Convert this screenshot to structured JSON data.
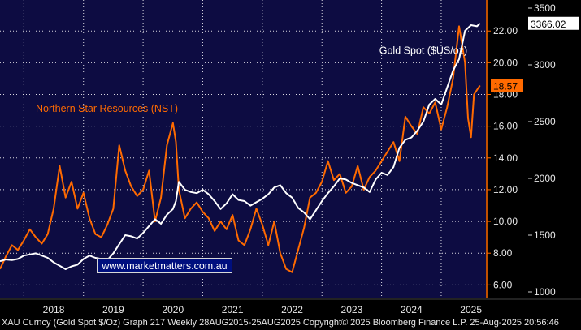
{
  "footer_text": "XAU Curncy (Gold Spot  $/Oz) Graph 217  Weekly 28AUG2015-25AUG2025 Copyright© 2025 Bloomberg Finance L.P. 25-Aug-2025 20:56:46",
  "watermark": "www.marketmatters.com.au",
  "colors": {
    "background": "#0d0c42",
    "gold": "#ffffff",
    "nst": "#ff6a00",
    "grid": "#ffffff",
    "axis_orange": "#ff6a00"
  },
  "chart_data": {
    "type": "line",
    "title": "",
    "xlabel": "",
    "ylabel": "",
    "grid": true,
    "legend": "inline labels",
    "x_range": [
      2017.6,
      2025.75
    ],
    "x_ticks": [
      "2018",
      "2019",
      "2020",
      "2021",
      "2022",
      "2023",
      "2024",
      "2025"
    ],
    "y_left": {
      "range": [
        5.2,
        23.8
      ],
      "ticks": [
        "6.00",
        "8.00",
        "10.00",
        "12.00",
        "14.00",
        "16.00",
        "18.00",
        "20.00",
        "22.00"
      ]
    },
    "y_right": {
      "range": [
        950,
        3550
      ],
      "ticks": [
        "1000",
        "1500",
        "2000",
        "2500",
        "3000",
        "3500"
      ]
    },
    "series": [
      {
        "name": "Gold Spot ($US/oz)",
        "axis": "right",
        "last_value": "3366.02",
        "x": [
          2017.6,
          2017.7,
          2017.8,
          2017.9,
          2018.0,
          2018.1,
          2018.2,
          2018.3,
          2018.4,
          2018.5,
          2018.6,
          2018.7,
          2018.8,
          2018.9,
          2019.0,
          2019.1,
          2019.2,
          2019.3,
          2019.4,
          2019.5,
          2019.6,
          2019.7,
          2019.8,
          2019.9,
          2020.0,
          2020.1,
          2020.2,
          2020.3,
          2020.4,
          2020.5,
          2020.55,
          2020.6,
          2020.7,
          2020.8,
          2020.9,
          2021.0,
          2021.1,
          2021.2,
          2021.3,
          2021.4,
          2021.5,
          2021.6,
          2021.7,
          2021.8,
          2021.9,
          2022.0,
          2022.1,
          2022.2,
          2022.3,
          2022.4,
          2022.5,
          2022.6,
          2022.7,
          2022.8,
          2022.9,
          2023.0,
          2023.1,
          2023.2,
          2023.3,
          2023.4,
          2023.5,
          2023.6,
          2023.7,
          2023.8,
          2023.9,
          2024.0,
          2024.1,
          2024.2,
          2024.3,
          2024.4,
          2024.5,
          2024.6,
          2024.7,
          2024.8,
          2024.9,
          2025.0,
          2025.1,
          2025.2,
          2025.3,
          2025.4,
          2025.5,
          2025.6,
          2025.65
        ],
        "values": [
          1270,
          1285,
          1280,
          1290,
          1320,
          1330,
          1340,
          1320,
          1300,
          1260,
          1230,
          1200,
          1225,
          1240,
          1290,
          1320,
          1300,
          1290,
          1280,
          1340,
          1420,
          1500,
          1490,
          1470,
          1520,
          1580,
          1640,
          1600,
          1680,
          1730,
          1800,
          1970,
          1900,
          1880,
          1870,
          1900,
          1860,
          1800,
          1730,
          1780,
          1860,
          1810,
          1800,
          1760,
          1790,
          1820,
          1860,
          1920,
          1940,
          1870,
          1830,
          1740,
          1700,
          1640,
          1720,
          1800,
          1870,
          1930,
          2000,
          1990,
          1960,
          1940,
          1920,
          1880,
          1990,
          2050,
          2030,
          2100,
          2270,
          2340,
          2360,
          2420,
          2500,
          2650,
          2700,
          2650,
          2800,
          2950,
          3050,
          3300,
          3350,
          3340,
          3366.02
        ]
      },
      {
        "name": "Northern Star Resources (NST)",
        "axis": "left",
        "last_value": "18.57",
        "x": [
          2017.6,
          2017.7,
          2017.8,
          2017.9,
          2018.0,
          2018.1,
          2018.2,
          2018.3,
          2018.4,
          2018.5,
          2018.6,
          2018.7,
          2018.8,
          2018.9,
          2019.0,
          2019.1,
          2019.2,
          2019.3,
          2019.4,
          2019.5,
          2019.6,
          2019.7,
          2019.8,
          2019.9,
          2020.0,
          2020.1,
          2020.2,
          2020.3,
          2020.4,
          2020.5,
          2020.55,
          2020.6,
          2020.7,
          2020.8,
          2020.9,
          2021.0,
          2021.1,
          2021.2,
          2021.3,
          2021.4,
          2021.5,
          2021.6,
          2021.7,
          2021.8,
          2021.9,
          2022.0,
          2022.1,
          2022.2,
          2022.3,
          2022.4,
          2022.5,
          2022.6,
          2022.7,
          2022.8,
          2022.9,
          2023.0,
          2023.1,
          2023.2,
          2023.3,
          2023.4,
          2023.5,
          2023.6,
          2023.7,
          2023.8,
          2023.9,
          2024.0,
          2024.1,
          2024.2,
          2024.3,
          2024.4,
          2024.5,
          2024.6,
          2024.7,
          2024.8,
          2024.9,
          2025.0,
          2025.1,
          2025.2,
          2025.3,
          2025.4,
          2025.45,
          2025.5,
          2025.55,
          2025.65
        ],
        "values": [
          7.0,
          7.8,
          8.5,
          8.2,
          8.8,
          9.5,
          9.0,
          8.6,
          9.2,
          10.8,
          13.5,
          11.5,
          12.5,
          10.8,
          11.8,
          10.2,
          9.2,
          9.0,
          9.8,
          10.8,
          14.8,
          13.2,
          12.2,
          11.6,
          12.0,
          13.2,
          10.0,
          11.5,
          14.8,
          16.2,
          15.0,
          12.0,
          10.2,
          10.8,
          11.2,
          10.6,
          10.2,
          9.4,
          10.0,
          9.5,
          10.4,
          8.8,
          8.5,
          9.5,
          10.8,
          9.8,
          8.5,
          10.0,
          8.0,
          7.0,
          6.8,
          8.2,
          9.6,
          11.5,
          11.8,
          12.5,
          13.8,
          12.6,
          13.0,
          11.8,
          12.2,
          13.5,
          12.0,
          12.8,
          13.2,
          13.8,
          14.4,
          15.0,
          13.8,
          16.6,
          16.0,
          15.5,
          17.2,
          16.8,
          17.5,
          15.8,
          17.2,
          19.0,
          22.3,
          20.0,
          16.5,
          15.3,
          18.0,
          18.57
        ]
      }
    ],
    "annotations": [
      {
        "text": "Gold Spot ($US/oz)",
        "x": 2024.7,
        "y": 20.55,
        "color": "#ffffff"
      },
      {
        "text": "Northern Star Resources (NST)",
        "x": 2018.2,
        "y": 16.9,
        "color": "#ff6a00"
      }
    ]
  }
}
